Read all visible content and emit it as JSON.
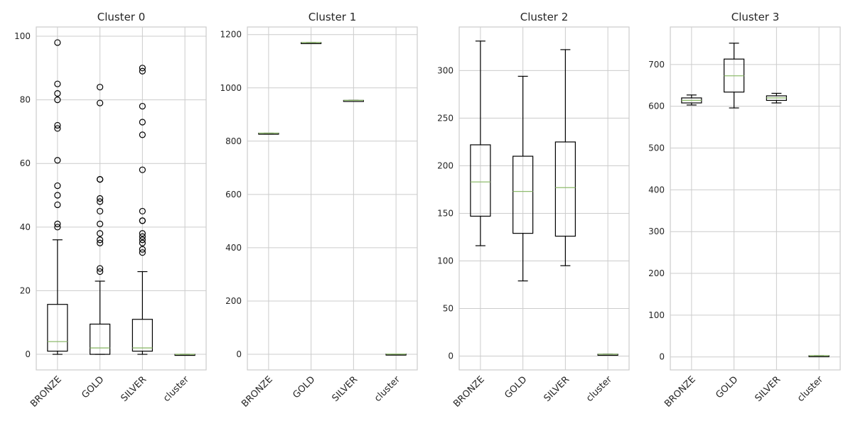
{
  "chart_data": [
    {
      "type": "box",
      "title": "Cluster 0",
      "categories": [
        "BRONZE",
        "GOLD",
        "SILVER",
        "cluster"
      ],
      "ylim": [
        -4.9,
        102.9
      ],
      "yticks": [
        0,
        20,
        40,
        60,
        80,
        100
      ],
      "grid": true,
      "boxes": [
        {
          "category": "BRONZE",
          "whisker_low": 0,
          "q1": 1,
          "median": 4,
          "q3": 15.7,
          "whisker_high": 36,
          "outliers": [
            40,
            41,
            47,
            50,
            53,
            61,
            71,
            72,
            80,
            82,
            85,
            98
          ]
        },
        {
          "category": "GOLD",
          "whisker_low": 0,
          "q1": 0,
          "median": 2,
          "q3": 9.5,
          "whisker_high": 23,
          "outliers": [
            26,
            27,
            35,
            36,
            38,
            41,
            45,
            48,
            49,
            55,
            55,
            79,
            84
          ]
        },
        {
          "category": "SILVER",
          "whisker_low": 0,
          "q1": 1,
          "median": 2,
          "q3": 11,
          "whisker_high": 26,
          "outliers": [
            32,
            33,
            35,
            36,
            37,
            38,
            42,
            42,
            45,
            58,
            69,
            73,
            78,
            89,
            90
          ]
        },
        {
          "category": "cluster",
          "whisker_low": 0,
          "q1": 0,
          "median": 0,
          "q3": 0,
          "whisker_high": 0,
          "outliers": []
        }
      ]
    },
    {
      "type": "box",
      "title": "Cluster 1",
      "categories": [
        "BRONZE",
        "GOLD",
        "SILVER",
        "cluster"
      ],
      "ylim": [
        -58.5,
        1228.5
      ],
      "yticks": [
        0,
        200,
        400,
        600,
        800,
        1000,
        1200
      ],
      "grid": true,
      "boxes": [
        {
          "category": "BRONZE",
          "whisker_low": 830,
          "q1": 830,
          "median": 830,
          "q3": 830,
          "whisker_high": 830,
          "outliers": []
        },
        {
          "category": "GOLD",
          "whisker_low": 1170,
          "q1": 1170,
          "median": 1170,
          "q3": 1170,
          "whisker_high": 1170,
          "outliers": []
        },
        {
          "category": "SILVER",
          "whisker_low": 953,
          "q1": 953,
          "median": 953,
          "q3": 953,
          "whisker_high": 953,
          "outliers": []
        },
        {
          "category": "cluster",
          "whisker_low": 1,
          "q1": 1,
          "median": 1,
          "q3": 1,
          "whisker_high": 1,
          "outliers": []
        }
      ]
    },
    {
      "type": "box",
      "title": "Cluster 2",
      "categories": [
        "BRONZE",
        "GOLD",
        "SILVER",
        "cluster"
      ],
      "ylim": [
        -14.5,
        345.8
      ],
      "yticks": [
        0,
        50,
        100,
        150,
        200,
        250,
        300
      ],
      "grid": true,
      "boxes": [
        {
          "category": "BRONZE",
          "whisker_low": 116,
          "q1": 147,
          "median": 183,
          "q3": 222,
          "whisker_high": 331,
          "outliers": []
        },
        {
          "category": "GOLD",
          "whisker_low": 79,
          "q1": 129,
          "median": 173,
          "q3": 210,
          "whisker_high": 294,
          "outliers": []
        },
        {
          "category": "SILVER",
          "whisker_low": 95,
          "q1": 126,
          "median": 177,
          "q3": 225,
          "whisker_high": 322,
          "outliers": []
        },
        {
          "category": "cluster",
          "whisker_low": 2,
          "q1": 2,
          "median": 2,
          "q3": 2,
          "whisker_high": 2,
          "outliers": []
        }
      ]
    },
    {
      "type": "box",
      "title": "Cluster 3",
      "categories": [
        "BRONZE",
        "GOLD",
        "SILVER",
        "cluster"
      ],
      "ylim": [
        -31.1,
        789.8
      ],
      "yticks": [
        0,
        100,
        200,
        300,
        400,
        500,
        600,
        700
      ],
      "grid": true,
      "boxes": [
        {
          "category": "BRONZE",
          "whisker_low": 603,
          "q1": 608,
          "median": 614,
          "q3": 620,
          "whisker_high": 627,
          "outliers": []
        },
        {
          "category": "GOLD",
          "whisker_low": 596,
          "q1": 634,
          "median": 673,
          "q3": 713,
          "whisker_high": 751,
          "outliers": []
        },
        {
          "category": "SILVER",
          "whisker_low": 608,
          "q1": 614,
          "median": 620,
          "q3": 625,
          "whisker_high": 631,
          "outliers": []
        },
        {
          "category": "cluster",
          "whisker_low": 3,
          "q1": 3,
          "median": 3,
          "q3": 3,
          "whisker_high": 3,
          "outliers": []
        }
      ]
    }
  ],
  "colors": {
    "grid": "#cccccc",
    "spine": "#cccccc",
    "box": "#000000",
    "median": "#8fbc6e",
    "text": "#262626"
  }
}
